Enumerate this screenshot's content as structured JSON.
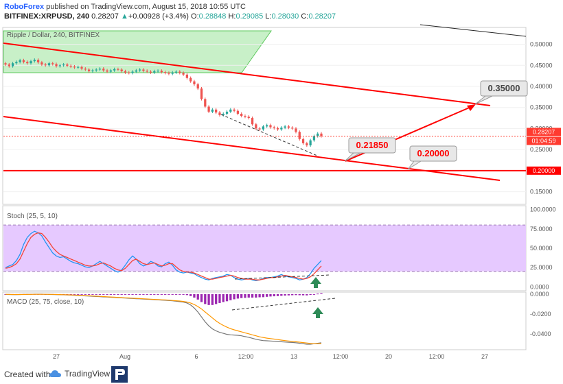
{
  "header": {
    "publisher": "RoboForex",
    "published_text": "published on TradingView.com, August 15, 2018 10:55 UTC",
    "symbol": "BITFINEX:XRPUSD, 240",
    "last": "0.28207",
    "change": "+0.00928 (+3.4%)",
    "o_label": "O:",
    "o_value": "0.28848",
    "h_label": "H:",
    "h_value": "0.29085",
    "l_label": "L:",
    "l_value": "0.28030",
    "c_label": "C:",
    "c_value": "0.28207"
  },
  "footer": {
    "created_with": "Created with",
    "tradingview": "TradingView"
  },
  "colors": {
    "up": "#26a69a",
    "down": "#ef5350",
    "trend": "#ff0000",
    "channel_fill": "#9be39b",
    "stoch_band": "#e6c9ff",
    "k_line": "#2196f3",
    "d_line": "#f44336",
    "macd_line": "#777777",
    "signal_line": "#ff9800",
    "hist": "#9c27b0",
    "arrow": "#2e8b57"
  },
  "chart_data": [
    {
      "type": "candlestick",
      "title": "Ripple / Dollar, 240, BITFINEX",
      "x_ticks": [
        "27",
        "Aug",
        "6",
        "12:00",
        "13",
        "12:00",
        "20",
        "12:00",
        "27"
      ],
      "ylim": [
        0.12,
        0.54
      ],
      "y_ticks": [
        0.5,
        0.45,
        0.4,
        0.35,
        0.3,
        0.25,
        0.15
      ],
      "y_tick_labels": [
        "0.50000",
        "0.45000",
        "0.40000",
        "0.35000",
        "0.30000",
        "0.25000",
        "0.15000"
      ],
      "last_price": 0.28207,
      "last_price_label": "0.28207",
      "countdown": "01:04:59",
      "support_level": 0.2,
      "support_label": "0.20000",
      "annotations": [
        {
          "label": "0.21850",
          "value": 0.2185
        },
        {
          "label": "0.20000",
          "value": 0.2
        },
        {
          "label": "0.35000",
          "value": 0.35
        }
      ],
      "closes": [
        0.452,
        0.448,
        0.455,
        0.458,
        0.462,
        0.458,
        0.455,
        0.46,
        0.463,
        0.457,
        0.452,
        0.45,
        0.455,
        0.453,
        0.448,
        0.45,
        0.452,
        0.449,
        0.447,
        0.445,
        0.446,
        0.442,
        0.44,
        0.436,
        0.438,
        0.44,
        0.442,
        0.438,
        0.435,
        0.438,
        0.441,
        0.44,
        0.436,
        0.433,
        0.432,
        0.435,
        0.438,
        0.44,
        0.437,
        0.435,
        0.433,
        0.436,
        0.437,
        0.434,
        0.432,
        0.43,
        0.433,
        0.435,
        0.432,
        0.428,
        0.42,
        0.412,
        0.405,
        0.395,
        0.37,
        0.352,
        0.34,
        0.345,
        0.338,
        0.332,
        0.335,
        0.34,
        0.345,
        0.342,
        0.335,
        0.33,
        0.328,
        0.325,
        0.31,
        0.3,
        0.298,
        0.305,
        0.308,
        0.303,
        0.301,
        0.298,
        0.302,
        0.305,
        0.302,
        0.3,
        0.292,
        0.275,
        0.265,
        0.26,
        0.272,
        0.282,
        0.288,
        0.282
      ]
    },
    {
      "type": "line",
      "title": "Stoch (25, 5, 10)",
      "ylim": [
        -5,
        105
      ],
      "y_ticks": [
        100,
        75,
        50,
        25,
        0
      ],
      "y_tick_labels": [
        "100.0000",
        "75.0000",
        "50.0000",
        "25.0000",
        "0.0000"
      ],
      "band": [
        20,
        80
      ],
      "series": [
        {
          "values": [
            25,
            27,
            29,
            34,
            42,
            55,
            64,
            69,
            72,
            70,
            66,
            58,
            51,
            44,
            40,
            38,
            39,
            36,
            33,
            31,
            30,
            28,
            26,
            25,
            27,
            30,
            33,
            30,
            27,
            24,
            21,
            19,
            22,
            28,
            35,
            40,
            36,
            30,
            27,
            29,
            33,
            31,
            27,
            26,
            30,
            32,
            28,
            22,
            19,
            18,
            19,
            18,
            17,
            14,
            12,
            10,
            9,
            11,
            12,
            13,
            14,
            16,
            15,
            12,
            10,
            9,
            10,
            11,
            9,
            8,
            9,
            11,
            12,
            12,
            13,
            14,
            16,
            14,
            13,
            12,
            11,
            9,
            10,
            12,
            17,
            24,
            29,
            34
          ]
        },
        {
          "values": [
            24,
            25,
            27,
            30,
            36,
            46,
            56,
            64,
            68,
            70,
            69,
            64,
            58,
            51,
            46,
            42,
            40,
            38,
            36,
            34,
            32,
            30,
            28,
            27,
            27,
            28,
            30,
            31,
            29,
            27,
            24,
            22,
            21,
            24,
            29,
            34,
            36,
            33,
            30,
            29,
            30,
            31,
            29,
            27,
            28,
            30,
            30,
            26,
            22,
            20,
            19,
            19,
            18,
            16,
            14,
            12,
            10,
            10,
            11,
            12,
            13,
            14,
            15,
            14,
            12,
            11,
            10,
            10,
            10,
            9,
            9,
            10,
            11,
            12,
            12,
            13,
            14,
            15,
            14,
            13,
            12,
            11,
            10,
            11,
            13,
            17,
            22,
            27
          ]
        }
      ]
    },
    {
      "type": "line",
      "title": "MACD (25, 75, close, 10)",
      "ylim": [
        -0.056,
        0.002
      ],
      "y_ticks": [
        0,
        -0.02,
        -0.04
      ],
      "y_tick_labels": [
        "0.0000",
        "-0.0200",
        "-0.0400"
      ],
      "series": [
        {
          "values": [
            -0.0003,
            -0.0004,
            -0.0005,
            -0.0005,
            -0.0004,
            -0.0003,
            -0.0002,
            -0.0002,
            -0.0001,
            -0.0001,
            -0.0001,
            -0.0002,
            -0.0003,
            -0.0004,
            -0.0005,
            -0.0006,
            -0.0007,
            -0.0008,
            -0.001,
            -0.0012,
            -0.0014,
            -0.0016,
            -0.0018,
            -0.002,
            -0.0022,
            -0.0024,
            -0.0026,
            -0.0028,
            -0.003,
            -0.0032,
            -0.0034,
            -0.0036,
            -0.0038,
            -0.004,
            -0.0042,
            -0.0044,
            -0.0046,
            -0.0048,
            -0.005,
            -0.0052,
            -0.0054,
            -0.0056,
            -0.0058,
            -0.006,
            -0.0062,
            -0.0065,
            -0.0068,
            -0.0072,
            -0.0076,
            -0.008,
            -0.009,
            -0.011,
            -0.014,
            -0.018,
            -0.023,
            -0.028,
            -0.032,
            -0.035,
            -0.037,
            -0.0385,
            -0.0395,
            -0.0405,
            -0.041,
            -0.0412,
            -0.0415,
            -0.042,
            -0.0428,
            -0.0435,
            -0.0445,
            -0.0455,
            -0.0462,
            -0.0468,
            -0.047,
            -0.0472,
            -0.0475,
            -0.0478,
            -0.048,
            -0.0483,
            -0.0485,
            -0.0487,
            -0.049,
            -0.0495,
            -0.05,
            -0.0505,
            -0.0505,
            -0.05,
            -0.0495,
            -0.049
          ]
        },
        {
          "values": [
            -0.0002,
            -0.0003,
            -0.0004,
            -0.0004,
            -0.0004,
            -0.0004,
            -0.0003,
            -0.0003,
            -0.0002,
            -0.0002,
            -0.0002,
            -0.0002,
            -0.0003,
            -0.0003,
            -0.0004,
            -0.0005,
            -0.0006,
            -0.0007,
            -0.0008,
            -0.001,
            -0.0011,
            -0.0013,
            -0.0015,
            -0.0017,
            -0.0019,
            -0.0021,
            -0.0023,
            -0.0025,
            -0.0027,
            -0.0029,
            -0.0031,
            -0.0033,
            -0.0035,
            -0.0037,
            -0.0039,
            -0.0041,
            -0.0043,
            -0.0045,
            -0.0047,
            -0.0049,
            -0.0051,
            -0.0053,
            -0.0055,
            -0.0057,
            -0.0059,
            -0.0061,
            -0.0064,
            -0.0067,
            -0.007,
            -0.0074,
            -0.008,
            -0.009,
            -0.0105,
            -0.0125,
            -0.015,
            -0.018,
            -0.021,
            -0.024,
            -0.027,
            -0.0295,
            -0.0315,
            -0.0333,
            -0.0348,
            -0.036,
            -0.037,
            -0.038,
            -0.039,
            -0.04,
            -0.041,
            -0.042,
            -0.043,
            -0.0437,
            -0.0443,
            -0.0448,
            -0.0453,
            -0.0458,
            -0.0463,
            -0.0468,
            -0.0472,
            -0.0476,
            -0.048,
            -0.0484,
            -0.0488,
            -0.0492,
            -0.0497,
            -0.05,
            -0.05,
            -0.0498
          ]
        },
        {
          "values": [
            -0.0001,
            -0.0001,
            -0.0001,
            -0.0001,
            0,
            0.0001,
            0.0001,
            0.0001,
            0.0001,
            0.0001,
            0.0001,
            0,
            0,
            -0.0001,
            -0.0001,
            -0.0001,
            -0.0001,
            -0.0001,
            -0.0002,
            -0.0002,
            -0.0003,
            -0.0003,
            -0.0003,
            -0.0003,
            -0.0003,
            -0.0003,
            -0.0003,
            -0.0003,
            -0.0003,
            -0.0003,
            -0.0003,
            -0.0003,
            -0.0003,
            -0.0003,
            -0.0003,
            -0.0003,
            -0.0003,
            -0.0003,
            -0.0003,
            -0.0003,
            -0.0003,
            -0.0003,
            -0.0003,
            -0.0003,
            -0.0003,
            -0.0004,
            -0.0004,
            -0.0005,
            -0.0006,
            -0.0006,
            -0.001,
            -0.002,
            -0.0035,
            -0.0055,
            -0.008,
            -0.01,
            -0.011,
            -0.011,
            -0.01,
            -0.009,
            -0.008,
            -0.0072,
            -0.0062,
            -0.0052,
            -0.0045,
            -0.004,
            -0.0038,
            -0.0035,
            -0.0035,
            -0.0035,
            -0.0032,
            -0.0031,
            -0.0027,
            -0.0024,
            -0.0022,
            -0.002,
            -0.0017,
            -0.0015,
            -0.0013,
            -0.0011,
            -0.001,
            -0.0011,
            -0.0012,
            -0.0013,
            -0.0008,
            0,
            0.0005,
            0.0008
          ]
        }
      ]
    }
  ]
}
